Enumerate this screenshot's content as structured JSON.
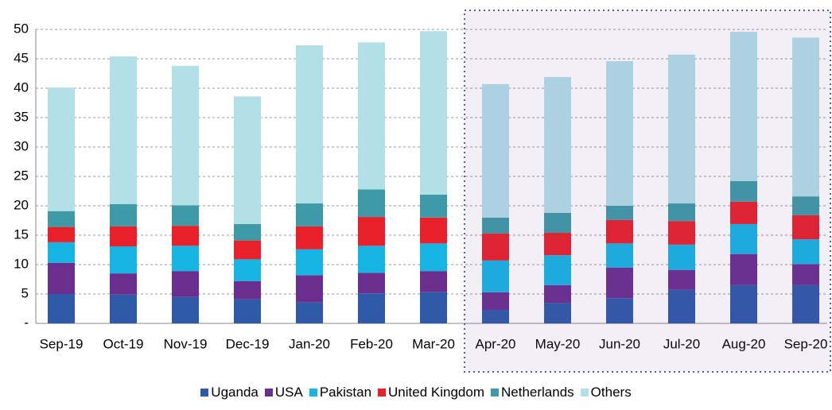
{
  "chart_data": {
    "type": "stacked_bar",
    "categories": [
      "Sep-19",
      "Oct-19",
      "Nov-19",
      "Dec-19",
      "Jan-20",
      "Feb-20",
      "Mar-20",
      "Apr-20",
      "May-20",
      "Jun-20",
      "Jul-20",
      "Aug-20",
      "Sep-20"
    ],
    "series": [
      {
        "name": "Uganda",
        "color": "#2f5aa8",
        "values": [
          5.0,
          4.9,
          4.5,
          4.1,
          3.6,
          5.1,
          5.3,
          2.3,
          3.5,
          4.3,
          5.7,
          6.5,
          6.5
        ]
      },
      {
        "name": "USA",
        "color": "#6a2f8e",
        "values": [
          5.3,
          3.6,
          4.4,
          3.1,
          4.6,
          3.5,
          3.6,
          3.0,
          3.0,
          5.2,
          3.4,
          5.3,
          3.6
        ]
      },
      {
        "name": "Pakistan",
        "color": "#16b4e3",
        "values": [
          3.5,
          4.6,
          4.3,
          3.7,
          4.4,
          4.6,
          4.7,
          5.4,
          5.1,
          4.1,
          4.3,
          5.1,
          4.2
        ]
      },
      {
        "name": "United Kingdom",
        "color": "#e8202a",
        "values": [
          2.6,
          3.4,
          3.4,
          3.2,
          3.9,
          4.9,
          4.4,
          4.6,
          3.8,
          4.0,
          4.0,
          3.8,
          4.1
        ]
      },
      {
        "name": "Netherlands",
        "color": "#3e9aa6",
        "values": [
          2.7,
          3.8,
          3.5,
          2.8,
          3.9,
          4.7,
          3.9,
          2.7,
          3.4,
          2.4,
          3.0,
          3.5,
          3.2
        ]
      },
      {
        "name": "Others",
        "color": "#b3dfe6",
        "values": [
          21.0,
          25.1,
          23.7,
          21.7,
          26.9,
          25.0,
          27.8,
          22.7,
          23.1,
          24.6,
          25.3,
          25.4,
          27.0
        ]
      }
    ],
    "ylim": [
      0,
      50
    ],
    "yticks": [
      {
        "value": 0,
        "label": "-"
      },
      5,
      10,
      15,
      20,
      25,
      30,
      35,
      40,
      45,
      50
    ],
    "grid": true,
    "highlight_from": "Apr-20",
    "legend": "bottom"
  }
}
